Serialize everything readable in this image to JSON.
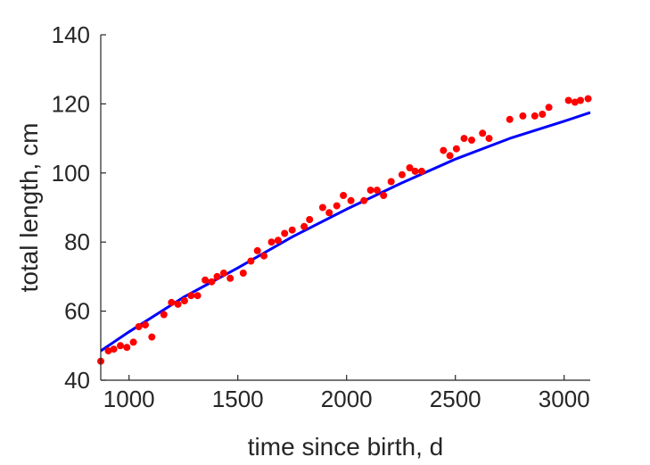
{
  "chart_data": {
    "type": "scatter",
    "xlabel": "time since birth, d",
    "ylabel": "total length, cm",
    "xlim": [
      870,
      3120
    ],
    "ylim": [
      40,
      140
    ],
    "xticks": [
      1000,
      1500,
      2000,
      2500,
      3000
    ],
    "yticks": [
      40,
      60,
      80,
      100,
      120,
      140
    ],
    "grid": false,
    "colors": {
      "points": "#ff0000",
      "fit": "#0000ff",
      "axes": "#262626"
    },
    "series": [
      {
        "kind": "scatter",
        "points": [
          [
            870,
            45.5
          ],
          [
            905,
            48.5
          ],
          [
            930,
            49
          ],
          [
            960,
            50
          ],
          [
            990,
            49.5
          ],
          [
            1020,
            51
          ],
          [
            1045,
            55.5
          ],
          [
            1075,
            56
          ],
          [
            1105,
            52.5
          ],
          [
            1160,
            59
          ],
          [
            1195,
            62.5
          ],
          [
            1225,
            62
          ],
          [
            1255,
            63
          ],
          [
            1285,
            64.5
          ],
          [
            1315,
            64.5
          ],
          [
            1350,
            69
          ],
          [
            1380,
            68.5
          ],
          [
            1405,
            70
          ],
          [
            1435,
            71
          ],
          [
            1465,
            69.5
          ],
          [
            1525,
            71
          ],
          [
            1560,
            74.5
          ],
          [
            1590,
            77.5
          ],
          [
            1620,
            76
          ],
          [
            1655,
            80
          ],
          [
            1685,
            80.5
          ],
          [
            1715,
            82.5
          ],
          [
            1750,
            83.5
          ],
          [
            1805,
            84.5
          ],
          [
            1830,
            86.5
          ],
          [
            1890,
            90
          ],
          [
            1920,
            88.5
          ],
          [
            1955,
            90.5
          ],
          [
            1985,
            93.5
          ],
          [
            2020,
            92
          ],
          [
            2080,
            92
          ],
          [
            2110,
            95
          ],
          [
            2140,
            95
          ],
          [
            2170,
            93.5
          ],
          [
            2205,
            97.5
          ],
          [
            2255,
            99.5
          ],
          [
            2290,
            101.5
          ],
          [
            2315,
            100.5
          ],
          [
            2345,
            100.5
          ],
          [
            2445,
            106.5
          ],
          [
            2475,
            105
          ],
          [
            2505,
            107
          ],
          [
            2540,
            110
          ],
          [
            2575,
            109.5
          ],
          [
            2625,
            111.5
          ],
          [
            2655,
            110
          ],
          [
            2750,
            115.5
          ],
          [
            2810,
            116.5
          ],
          [
            2865,
            116.5
          ],
          [
            2900,
            117
          ],
          [
            2930,
            119
          ],
          [
            3020,
            121
          ],
          [
            3050,
            120.5
          ],
          [
            3075,
            121
          ],
          [
            3110,
            121.5
          ]
        ]
      },
      {
        "kind": "line",
        "points": [
          [
            870,
            48.5
          ],
          [
            1000,
            54
          ],
          [
            1250,
            64
          ],
          [
            1500,
            72.5
          ],
          [
            1750,
            81.5
          ],
          [
            2000,
            89.5
          ],
          [
            2250,
            97
          ],
          [
            2500,
            104
          ],
          [
            2750,
            110
          ],
          [
            3000,
            115
          ],
          [
            3120,
            117.5
          ]
        ]
      }
    ]
  }
}
